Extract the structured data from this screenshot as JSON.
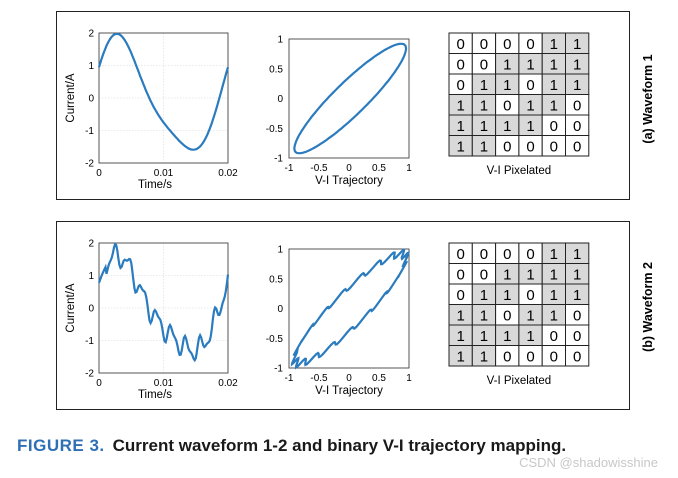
{
  "panels": [
    {
      "side_label": "(a) Waveform 1",
      "waveform": {
        "ylabel": "Current/A",
        "xlabel": "Time/s",
        "yticks": [
          "2",
          "1",
          "0",
          "-1",
          "-2"
        ],
        "xticks": [
          "0",
          "0.01",
          "0.02"
        ]
      },
      "trajectory": {
        "xlabel": "V-I Trajectory",
        "yticks": [
          "1",
          "0.5",
          "0",
          "-0.5",
          "-1"
        ],
        "xticks": [
          "-1",
          "-0.5",
          "0",
          "0.5",
          "1"
        ]
      },
      "pixelated": {
        "xlabel": "V-I Pixelated",
        "grid": [
          [
            0,
            0,
            0,
            0,
            1,
            1
          ],
          [
            0,
            0,
            1,
            1,
            1,
            1
          ],
          [
            0,
            1,
            1,
            0,
            1,
            1
          ],
          [
            1,
            1,
            0,
            1,
            1,
            0
          ],
          [
            1,
            1,
            1,
            1,
            0,
            0
          ],
          [
            1,
            1,
            0,
            0,
            0,
            0
          ]
        ]
      }
    },
    {
      "side_label": "(b) Waveform 2",
      "waveform": {
        "ylabel": "Current/A",
        "xlabel": "Time/s",
        "yticks": [
          "2",
          "1",
          "0",
          "-1",
          "-2"
        ],
        "xticks": [
          "0",
          "0.01",
          "0.02"
        ]
      },
      "trajectory": {
        "xlabel": "V-I Trajectory",
        "yticks": [
          "1",
          "0.5",
          "0",
          "-0.5",
          "-1"
        ],
        "xticks": [
          "-1",
          "-0.5",
          "0",
          "0.5",
          "1"
        ]
      },
      "pixelated": {
        "xlabel": "V-I Pixelated",
        "grid": [
          [
            0,
            0,
            0,
            0,
            1,
            1
          ],
          [
            0,
            0,
            1,
            1,
            1,
            1
          ],
          [
            0,
            1,
            1,
            0,
            1,
            1
          ],
          [
            1,
            1,
            0,
            1,
            1,
            0
          ],
          [
            1,
            1,
            1,
            1,
            0,
            0
          ],
          [
            1,
            1,
            0,
            0,
            0,
            0
          ]
        ]
      }
    }
  ],
  "caption": {
    "figure_label": "FIGURE 3.",
    "text": "Current waveform 1-2 and binary V-I trajectory mapping."
  },
  "watermark": "CSDN @shadowisshine",
  "colors": {
    "curve": "#2b7bbf",
    "pixel_on": "#d9d9d9",
    "pixel_off": "#ffffff",
    "caption_accent": "#2f6fb3"
  }
}
